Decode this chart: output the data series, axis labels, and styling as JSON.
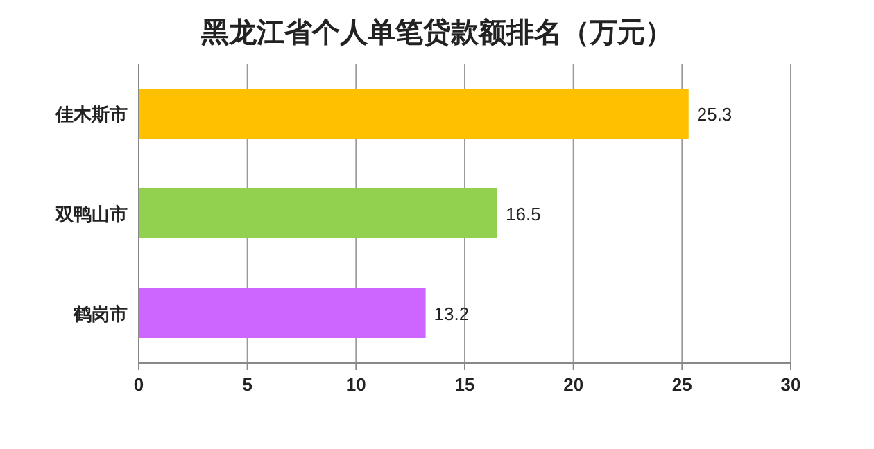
{
  "chart_data": {
    "type": "bar",
    "orientation": "horizontal",
    "title": "黑龙江省个人单笔贷款额排名（万元）",
    "categories": [
      "佳木斯市",
      "双鸭山市",
      "鹤岗市"
    ],
    "values": [
      25.3,
      16.5,
      13.2
    ],
    "colors": [
      "#ffc000",
      "#92d050",
      "#cc66ff"
    ],
    "xlim": [
      0,
      30
    ],
    "xticks": [
      0,
      5,
      10,
      15,
      20,
      25,
      30
    ],
    "grid": "x",
    "data_labels": true
  }
}
